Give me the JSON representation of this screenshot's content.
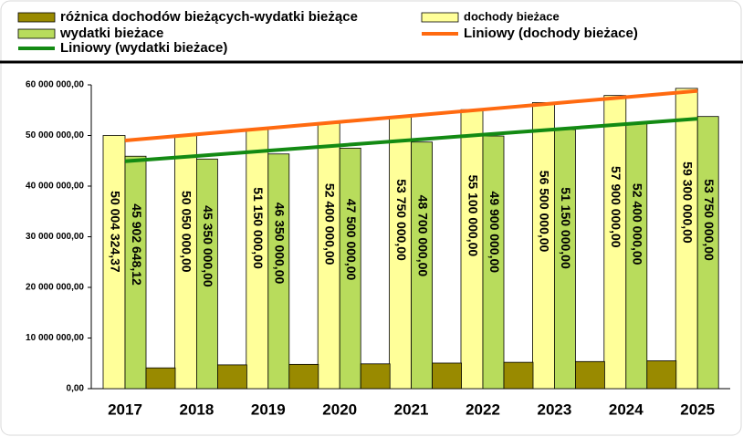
{
  "chart_data": {
    "type": "bar",
    "categories": [
      "2017",
      "2018",
      "2019",
      "2020",
      "2021",
      "2022",
      "2023",
      "2024",
      "2025"
    ],
    "series": [
      {
        "name": "dochody bieżace",
        "style": "bar",
        "color": "#ffff99",
        "values": [
          50004324.37,
          50050000,
          51150000,
          52400000,
          53750000,
          55100000,
          56500000,
          57900000,
          59300000
        ],
        "value_labels": [
          "50 004 324,37",
          "50 050 000,00",
          "51 150 000,00",
          "52 400 000,00",
          "53 750 000,00",
          "55 100 000,00",
          "56 500 000,00",
          "57 900 000,00",
          "59 300 000,00"
        ]
      },
      {
        "name": "wydatki bieżace",
        "style": "bar",
        "color": "#b8dc5c",
        "values": [
          45902648.12,
          45350000,
          46350000,
          47500000,
          48700000,
          49900000,
          51150000,
          52400000,
          53750000
        ],
        "value_labels": [
          "45 902 648,12",
          "45 350 000,00",
          "46 350 000,00",
          "47 500 000,00",
          "48 700 000,00",
          "49 900 000,00",
          "51 150 000,00",
          "52 400 000,00",
          "53 750 000,00"
        ]
      },
      {
        "name": "różnica dochodów bieżących-wydatki bieżące",
        "style": "bar",
        "color": "#998a00",
        "values": [
          4101676.25,
          4700000,
          4800000,
          4900000,
          5050000,
          5200000,
          5350000,
          5500000,
          null
        ]
      },
      {
        "name": "Liniowy (dochody bieżace)",
        "style": "line",
        "color": "#ff6a10",
        "values": [
          49000000,
          50225000,
          51450000,
          52675000,
          53900000,
          55125000,
          56350000,
          57575000,
          58800000
        ]
      },
      {
        "name": "Liniowy (wydatki bieżace)",
        "style": "line",
        "color": "#138a13",
        "values": [
          44900000,
          45950000,
          47000000,
          48050000,
          49100000,
          50150000,
          51200000,
          52250000,
          53300000
        ]
      }
    ],
    "ylim": [
      0,
      60000000
    ],
    "yticks": [
      {
        "value": 0,
        "label": "0,00"
      },
      {
        "value": 10000000,
        "label": "10 000 000,00"
      },
      {
        "value": 20000000,
        "label": "20 000 000,00"
      },
      {
        "value": 30000000,
        "label": "30 000 000,00"
      },
      {
        "value": 40000000,
        "label": "40 000 000,00"
      },
      {
        "value": 50000000,
        "label": "50 000 000,00"
      },
      {
        "value": 60000000,
        "label": "60 000 000,00"
      }
    ],
    "legend": "top"
  }
}
